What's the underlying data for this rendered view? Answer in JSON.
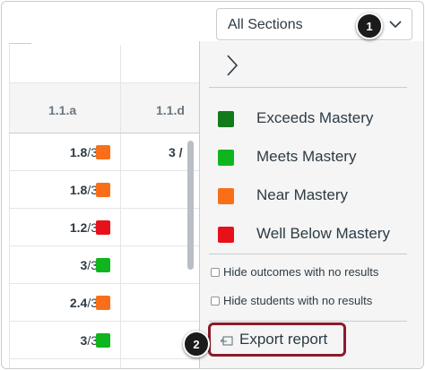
{
  "section_filter": {
    "selected": "All Sections"
  },
  "callouts": {
    "one": "1",
    "two": "2"
  },
  "grid": {
    "columns": [
      "1.1.a",
      "1.1.d"
    ],
    "rows": [
      {
        "score": "1.8",
        "max": "/3",
        "color": "#fa6e19",
        "col2": "3 /"
      },
      {
        "score": "1.8",
        "max": "/3",
        "color": "#fa6e19",
        "col2": ""
      },
      {
        "score": "1.2",
        "max": "/3",
        "color": "#e8101b",
        "col2": ""
      },
      {
        "score": "3",
        "max": "/3",
        "color": "#0fb51e",
        "col2": ""
      },
      {
        "score": "2.4",
        "max": "/3",
        "color": "#fa6e19",
        "col2": ""
      },
      {
        "score": "3",
        "max": "/3",
        "color": "#0fb51e",
        "col2": ""
      }
    ]
  },
  "legend": [
    {
      "label": "Exceeds Mastery",
      "color": "#127a1b"
    },
    {
      "label": "Meets Mastery",
      "color": "#0fb51e"
    },
    {
      "label": "Near Mastery",
      "color": "#fa6e19"
    },
    {
      "label": "Well Below Mastery",
      "color": "#e8101b"
    }
  ],
  "options": {
    "hide_outcomes": "Hide outcomes with no results",
    "hide_students": "Hide students with no results"
  },
  "export": {
    "label": "Export report"
  },
  "icons": {
    "dropdown": "chevron-down-icon",
    "panel_toggle": "chevron-right-icon",
    "export": "export-icon"
  }
}
